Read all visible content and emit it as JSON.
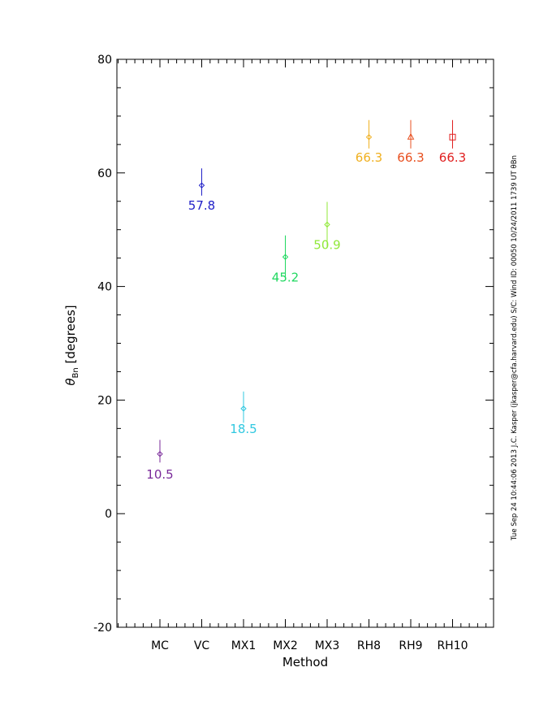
{
  "chart_data": {
    "type": "scatter",
    "xlabel": "Method",
    "ylabel_main": "θ",
    "ylabel_sub": "Bn",
    "ylabel_units": "[degrees]",
    "ylim": [
      -20,
      80
    ],
    "yticks": [
      -20,
      0,
      20,
      40,
      60,
      80
    ],
    "y_minor_step": 5,
    "grid": false,
    "categories": [
      "MC",
      "VC",
      "MX1",
      "MX2",
      "MX3",
      "RH8",
      "RH9",
      "RH10"
    ],
    "points": [
      {
        "method": "MC",
        "value": 10.5,
        "label": "10.5",
        "err_low": 1.5,
        "err_high": 2.5,
        "marker": "diamond",
        "color": "#7a2a9a"
      },
      {
        "method": "VC",
        "value": 57.8,
        "label": "57.8",
        "err_low": 1.8,
        "err_high": 3.0,
        "marker": "diamond",
        "color": "#2020c8"
      },
      {
        "method": "MX1",
        "value": 18.5,
        "label": "18.5",
        "err_low": 2.5,
        "err_high": 3.0,
        "marker": "diamond",
        "color": "#30c8e0"
      },
      {
        "method": "MX2",
        "value": 45.2,
        "label": "45.2",
        "err_low": 3.8,
        "err_high": 3.8,
        "marker": "diamond",
        "color": "#20d860"
      },
      {
        "method": "MX3",
        "value": 50.9,
        "label": "50.9",
        "err_low": 4.0,
        "err_high": 4.0,
        "marker": "diamond",
        "color": "#90e838"
      },
      {
        "method": "RH8",
        "value": 66.3,
        "label": "66.3",
        "err_low": 2.0,
        "err_high": 3.0,
        "marker": "diamond",
        "color": "#f0b020"
      },
      {
        "method": "RH9",
        "value": 66.3,
        "label": "66.3",
        "err_low": 2.0,
        "err_high": 3.0,
        "marker": "triangle",
        "color": "#e85020"
      },
      {
        "method": "RH10",
        "value": 66.3,
        "label": "66.3",
        "err_low": 2.0,
        "err_high": 3.0,
        "marker": "square",
        "color": "#e02020"
      }
    ]
  },
  "footer_text": "Tue Sep 24 10:44:06 2013   J.C. Kasper (jkasper@cfa.harvard.edu)   S/C: Wind  ID: 00050 10/24/2011  1739 UT θBn"
}
